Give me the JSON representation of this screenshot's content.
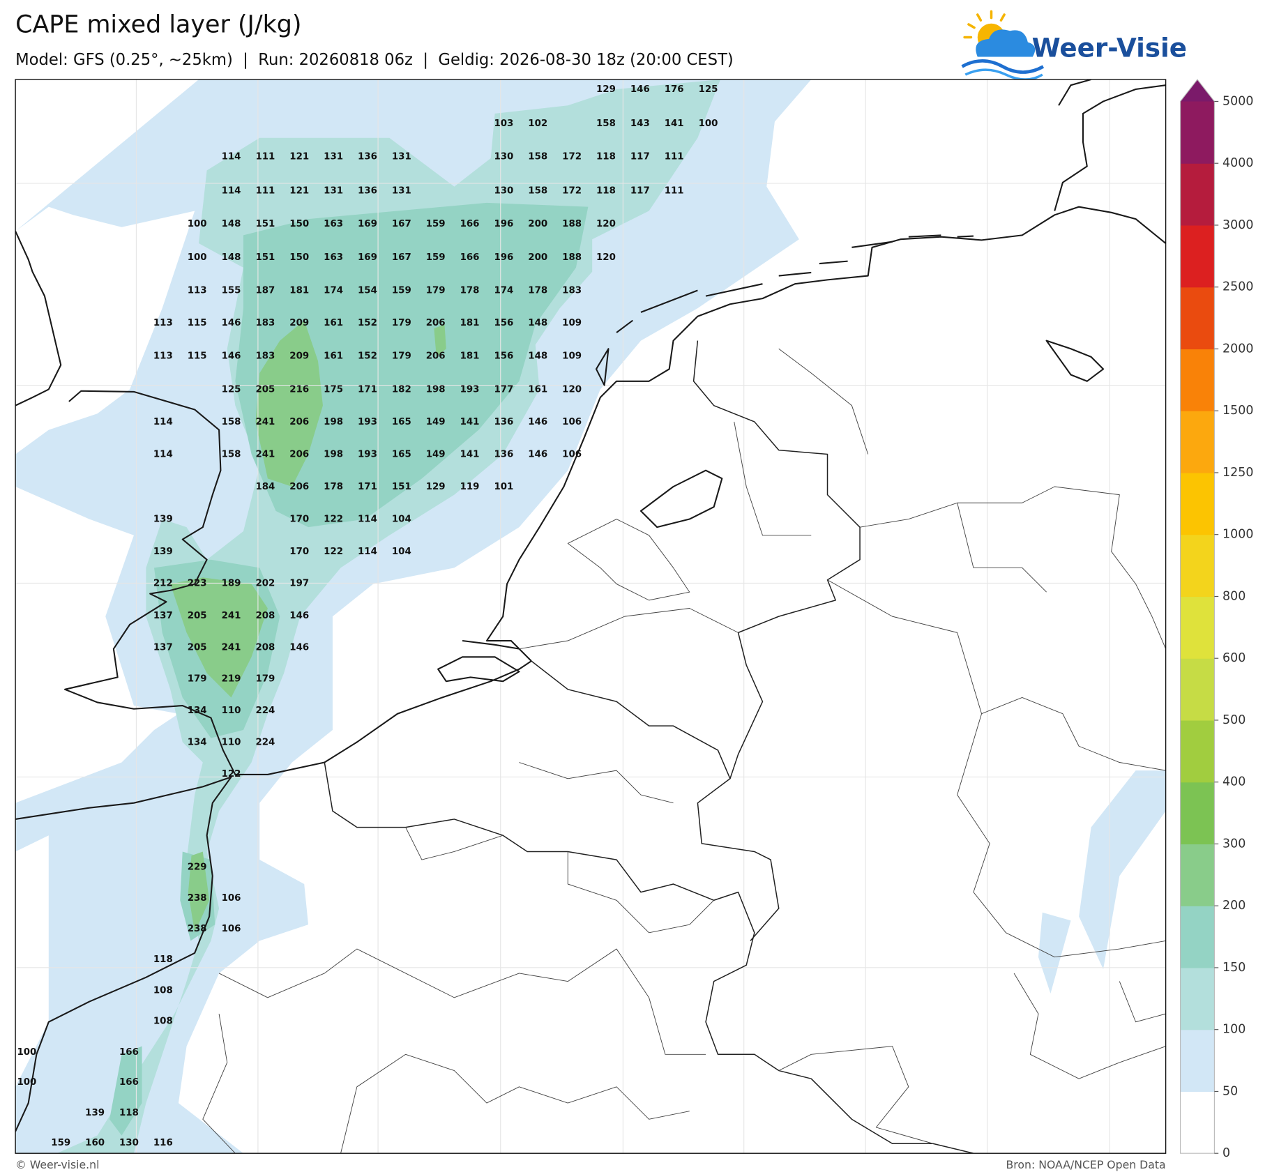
{
  "header": {
    "title": "CAPE mixed layer (J/kg)",
    "subtitle": "Model: GFS (0.25°, ~25km)  |  Run: 20260818 06z  |  Geldig: 2026-08-30 18z (20:00 CEST)"
  },
  "logo": {
    "text": "Weer-Visie"
  },
  "map": {
    "value_grid": [
      [
        null,
        null,
        null,
        null,
        null,
        null,
        null,
        null,
        null,
        null,
        null,
        null,
        null,
        null,
        null,
        null,
        null,
        129,
        146,
        176,
        125
      ],
      [
        null,
        null,
        null,
        null,
        null,
        null,
        null,
        null,
        null,
        null,
        null,
        null,
        null,
        null,
        103,
        102,
        null,
        158,
        143,
        141,
        100
      ],
      [
        null,
        null,
        null,
        null,
        null,
        null,
        114,
        111,
        121,
        131,
        136,
        131,
        null,
        null,
        130,
        158,
        172,
        118,
        117,
        111
      ],
      [
        null,
        null,
        null,
        null,
        null,
        null,
        114,
        111,
        121,
        131,
        136,
        131,
        null,
        null,
        130,
        158,
        172,
        118,
        117,
        111
      ],
      [
        null,
        null,
        null,
        null,
        null,
        100,
        148,
        151,
        150,
        163,
        169,
        167,
        159,
        166,
        196,
        200,
        188,
        120
      ],
      [
        null,
        null,
        null,
        null,
        null,
        100,
        148,
        151,
        150,
        163,
        169,
        167,
        159,
        166,
        196,
        200,
        188,
        120
      ],
      [
        null,
        null,
        null,
        null,
        null,
        113,
        155,
        187,
        181,
        174,
        154,
        159,
        179,
        178,
        174,
        178,
        183
      ],
      [
        null,
        null,
        null,
        null,
        113,
        115,
        146,
        183,
        209,
        161,
        152,
        179,
        206,
        181,
        156,
        148,
        109
      ],
      [
        null,
        null,
        null,
        null,
        113,
        115,
        146,
        183,
        209,
        161,
        152,
        179,
        206,
        181,
        156,
        148,
        109
      ],
      [
        null,
        null,
        null,
        null,
        null,
        null,
        125,
        205,
        216,
        175,
        171,
        182,
        198,
        193,
        177,
        161,
        120
      ],
      [
        null,
        null,
        null,
        null,
        114,
        null,
        158,
        241,
        206,
        198,
        193,
        165,
        149,
        141,
        136,
        146,
        106
      ],
      [
        null,
        null,
        null,
        null,
        114,
        null,
        158,
        241,
        206,
        198,
        193,
        165,
        149,
        141,
        136,
        146,
        106
      ],
      [
        null,
        null,
        null,
        null,
        null,
        null,
        null,
        184,
        206,
        178,
        171,
        151,
        129,
        119,
        101
      ],
      [
        null,
        null,
        null,
        null,
        139,
        null,
        null,
        null,
        170,
        122,
        114,
        104
      ],
      [
        null,
        null,
        null,
        null,
        139,
        null,
        null,
        null,
        170,
        122,
        114,
        104
      ],
      [
        null,
        null,
        null,
        null,
        212,
        223,
        189,
        202,
        197
      ],
      [
        null,
        null,
        null,
        null,
        137,
        205,
        241,
        208,
        146
      ],
      [
        null,
        null,
        null,
        null,
        137,
        205,
        241,
        208,
        146
      ],
      [
        null,
        null,
        null,
        null,
        null,
        179,
        219,
        179
      ],
      [
        null,
        null,
        null,
        null,
        null,
        134,
        110,
        224
      ],
      [
        null,
        null,
        null,
        null,
        null,
        134,
        110,
        224
      ],
      [
        null,
        null,
        null,
        null,
        null,
        null,
        122
      ],
      [
        null,
        null,
        null,
        null,
        null,
        229
      ],
      [
        null,
        null,
        null,
        null,
        null,
        238,
        106
      ],
      [
        null,
        null,
        null,
        null,
        null,
        238,
        106
      ],
      [
        null,
        null,
        null,
        null,
        118
      ],
      [
        null,
        null,
        null,
        null,
        108
      ],
      [
        null,
        null,
        null,
        null,
        108
      ],
      [
        100,
        null,
        null,
        166
      ],
      [
        100,
        null,
        null,
        166
      ],
      [
        null,
        null,
        139,
        118
      ],
      [
        null,
        159,
        160,
        130,
        116
      ]
    ]
  },
  "colorbar": {
    "levels": [
      0,
      50,
      100,
      150,
      200,
      300,
      400,
      500,
      600,
      800,
      1000,
      1250,
      1500,
      2000,
      2500,
      3000,
      4000,
      5000
    ],
    "colors": [
      "#ffffff",
      "#d2e7f6",
      "#b3dfdc",
      "#94d3c4",
      "#89cc8a",
      "#7cc353",
      "#a1cd3f",
      "#c6dc45",
      "#dfe23b",
      "#f3d41c",
      "#fcc401",
      "#fca80e",
      "#f98208",
      "#ea4b0f",
      "#dc2020",
      "#b51c3d",
      "#8e1a5f"
    ],
    "extend_color": "#7b1a6a"
  },
  "footer": {
    "credit": "© Weer-visie.nl",
    "source": "Bron: NOAA/NCEP Open Data"
  }
}
